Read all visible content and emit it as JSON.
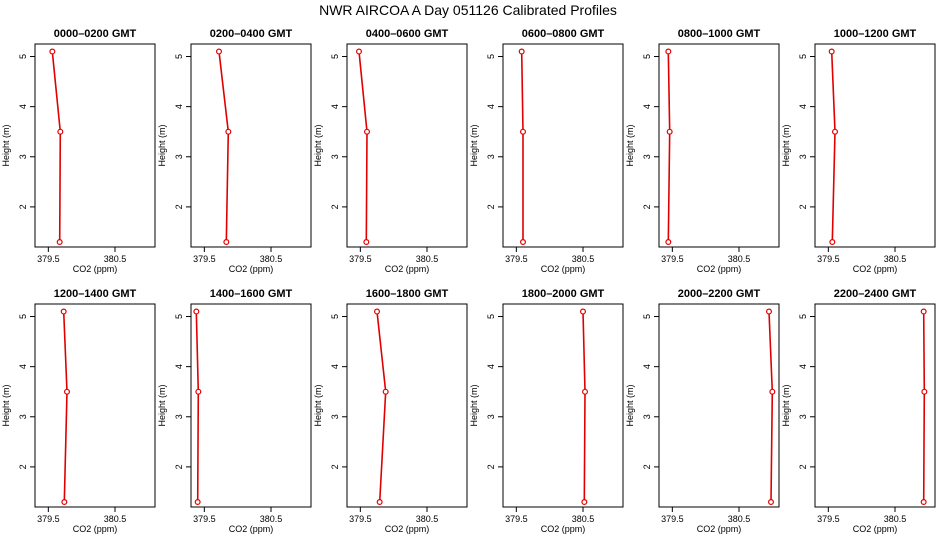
{
  "title": "NWR AIRCOA A  Day 051126  Calibrated Profiles",
  "colors": {
    "line": "#e00000",
    "frame": "#000000",
    "background": "#ffffff"
  },
  "chart_data": [
    {
      "type": "line",
      "title": "0000–0200 GMT",
      "xlabel": "CO2 (ppm)",
      "ylabel": "Height (m)",
      "xlim": [
        379.3,
        381.1
      ],
      "ylim": [
        1.2,
        5.25
      ],
      "xticks": [
        379.5,
        380.5
      ],
      "xtick_labels": [
        "379.5",
        "380.5"
      ],
      "yticks": [
        2,
        3,
        4,
        5
      ],
      "series": [
        {
          "x": [
            379.56,
            379.68,
            379.67
          ],
          "y": [
            5.1,
            3.5,
            1.3
          ]
        }
      ]
    },
    {
      "type": "line",
      "title": "0200–0400 GMT",
      "xlabel": "CO2 (ppm)",
      "ylabel": "Height (m)",
      "xlim": [
        379.3,
        381.1
      ],
      "ylim": [
        1.2,
        5.25
      ],
      "xticks": [
        379.5,
        380.5
      ],
      "xtick_labels": [
        "379.5",
        "380.5"
      ],
      "yticks": [
        2,
        3,
        4,
        5
      ],
      "series": [
        {
          "x": [
            379.72,
            379.86,
            379.83
          ],
          "y": [
            5.1,
            3.5,
            1.3
          ]
        }
      ]
    },
    {
      "type": "line",
      "title": "0400–0600 GMT",
      "xlabel": "CO2 (ppm)",
      "ylabel": "Height (m)",
      "xlim": [
        379.3,
        381.1
      ],
      "ylim": [
        1.2,
        5.25
      ],
      "xticks": [
        379.5,
        380.5
      ],
      "xtick_labels": [
        "379.5",
        "380.5"
      ],
      "yticks": [
        2,
        3,
        4,
        5
      ],
      "series": [
        {
          "x": [
            379.48,
            379.6,
            379.59
          ],
          "y": [
            5.1,
            3.5,
            1.3
          ]
        }
      ]
    },
    {
      "type": "line",
      "title": "0600–0800 GMT",
      "xlabel": "CO2 (ppm)",
      "ylabel": "Height (m)",
      "xlim": [
        379.3,
        381.1
      ],
      "ylim": [
        1.2,
        5.25
      ],
      "xticks": [
        379.5,
        380.5
      ],
      "xtick_labels": [
        "379.5",
        "380.5"
      ],
      "yticks": [
        2,
        3,
        4,
        5
      ],
      "series": [
        {
          "x": [
            379.58,
            379.6,
            379.6
          ],
          "y": [
            5.1,
            3.5,
            1.3
          ]
        }
      ]
    },
    {
      "type": "line",
      "title": "0800–1000 GMT",
      "xlabel": "CO2 (ppm)",
      "ylabel": "Height (m)",
      "xlim": [
        379.3,
        381.1
      ],
      "ylim": [
        1.2,
        5.25
      ],
      "xticks": [
        379.5,
        380.5
      ],
      "xtick_labels": [
        "379.5",
        "380.5"
      ],
      "yticks": [
        2,
        3,
        4,
        5
      ],
      "series": [
        {
          "x": [
            379.44,
            379.46,
            379.44
          ],
          "y": [
            5.1,
            3.5,
            1.3
          ]
        }
      ]
    },
    {
      "type": "line",
      "title": "1000–1200 GMT",
      "xlabel": "CO2 (ppm)",
      "ylabel": "Height (m)",
      "xlim": [
        379.3,
        381.1
      ],
      "ylim": [
        1.2,
        5.25
      ],
      "xticks": [
        379.5,
        380.5
      ],
      "xtick_labels": [
        "379.5",
        "380.5"
      ],
      "yticks": [
        2,
        3,
        4,
        5
      ],
      "series": [
        {
          "x": [
            379.55,
            379.6,
            379.56
          ],
          "y": [
            5.1,
            3.5,
            1.3
          ]
        }
      ]
    },
    {
      "type": "line",
      "title": "1200–1400 GMT",
      "xlabel": "CO2 (ppm)",
      "ylabel": "Height (m)",
      "xlim": [
        379.3,
        381.1
      ],
      "ylim": [
        1.2,
        5.25
      ],
      "xticks": [
        379.5,
        380.5
      ],
      "xtick_labels": [
        "379.5",
        "380.5"
      ],
      "yticks": [
        2,
        3,
        4,
        5
      ],
      "series": [
        {
          "x": [
            379.73,
            379.78,
            379.74
          ],
          "y": [
            5.1,
            3.5,
            1.3
          ]
        }
      ]
    },
    {
      "type": "line",
      "title": "1400–1600 GMT",
      "xlabel": "CO2 (ppm)",
      "ylabel": "Height (m)",
      "xlim": [
        379.3,
        381.1
      ],
      "ylim": [
        1.2,
        5.25
      ],
      "xticks": [
        379.5,
        380.5
      ],
      "xtick_labels": [
        "379.5",
        "380.5"
      ],
      "yticks": [
        2,
        3,
        4,
        5
      ],
      "series": [
        {
          "x": [
            379.38,
            379.41,
            379.4
          ],
          "y": [
            5.1,
            3.5,
            1.3
          ]
        }
      ]
    },
    {
      "type": "line",
      "title": "1600–1800 GMT",
      "xlabel": "CO2 (ppm)",
      "ylabel": "Height (m)",
      "xlim": [
        379.3,
        381.1
      ],
      "ylim": [
        1.2,
        5.25
      ],
      "xticks": [
        379.5,
        380.5
      ],
      "xtick_labels": [
        "379.5",
        "380.5"
      ],
      "yticks": [
        2,
        3,
        4,
        5
      ],
      "series": [
        {
          "x": [
            379.75,
            379.88,
            379.79
          ],
          "y": [
            5.1,
            3.5,
            1.3
          ]
        }
      ]
    },
    {
      "type": "line",
      "title": "1800–2000 GMT",
      "xlabel": "CO2 (ppm)",
      "ylabel": "Height (m)",
      "xlim": [
        379.3,
        381.1
      ],
      "ylim": [
        1.2,
        5.25
      ],
      "xticks": [
        379.5,
        380.5
      ],
      "xtick_labels": [
        "379.5",
        "380.5"
      ],
      "yticks": [
        2,
        3,
        4,
        5
      ],
      "series": [
        {
          "x": [
            380.5,
            380.53,
            380.52
          ],
          "y": [
            5.1,
            3.5,
            1.3
          ]
        }
      ]
    },
    {
      "type": "line",
      "title": "2000–2200 GMT",
      "xlabel": "CO2 (ppm)",
      "ylabel": "Height (m)",
      "xlim": [
        379.3,
        381.1
      ],
      "ylim": [
        1.2,
        5.25
      ],
      "xticks": [
        379.5,
        380.5
      ],
      "xtick_labels": [
        "379.5",
        "380.5"
      ],
      "yticks": [
        2,
        3,
        4,
        5
      ],
      "series": [
        {
          "x": [
            380.95,
            381.0,
            380.98
          ],
          "y": [
            5.1,
            3.5,
            1.3
          ]
        }
      ]
    },
    {
      "type": "line",
      "title": "2200–2400 GMT",
      "xlabel": "CO2 (ppm)",
      "ylabel": "Height (m)",
      "xlim": [
        379.3,
        381.1
      ],
      "ylim": [
        1.2,
        5.25
      ],
      "xticks": [
        379.5,
        380.5
      ],
      "xtick_labels": [
        "379.5",
        "380.5"
      ],
      "yticks": [
        2,
        3,
        4,
        5
      ],
      "series": [
        {
          "x": [
            380.93,
            380.94,
            380.93
          ],
          "y": [
            5.1,
            3.5,
            1.3
          ]
        }
      ]
    }
  ]
}
